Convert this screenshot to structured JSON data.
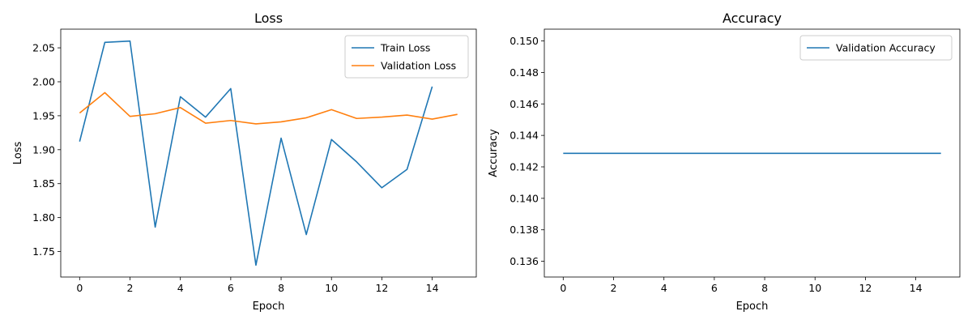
{
  "colors": {
    "series_1": "#1f77b4",
    "series_2": "#ff7f0e",
    "axis": "#000000",
    "background": "#ffffff"
  },
  "chart_data": [
    {
      "type": "line",
      "title": "Loss",
      "xlabel": "Epoch",
      "ylabel": "Loss",
      "xlim": [
        -0.75,
        15.75
      ],
      "ylim": [
        1.7125,
        2.0775
      ],
      "xticks": [
        0,
        2,
        4,
        6,
        8,
        10,
        12,
        14
      ],
      "yticks": [
        1.75,
        1.8,
        1.85,
        1.9,
        1.95,
        2.0,
        2.05
      ],
      "ytick_labels": [
        "1.75",
        "1.80",
        "1.85",
        "1.90",
        "1.95",
        "2.00",
        "2.05"
      ],
      "grid": false,
      "legend_position": "top-right",
      "series": [
        {
          "name": "Train Loss",
          "color": "#1f77b4",
          "x": [
            0,
            1,
            2,
            3,
            4,
            5,
            6,
            7,
            8,
            9,
            10,
            11,
            12,
            13,
            14
          ],
          "y": [
            1.912,
            2.058,
            2.06,
            1.786,
            1.978,
            1.948,
            1.99,
            1.73,
            1.917,
            1.775,
            1.915,
            1.882,
            1.844,
            1.871,
            1.993
          ]
        },
        {
          "name": "Validation Loss",
          "color": "#ff7f0e",
          "x": [
            0,
            1,
            2,
            3,
            4,
            5,
            6,
            7,
            8,
            9,
            10,
            11,
            12,
            13,
            14,
            15
          ],
          "y": [
            1.954,
            1.984,
            1.949,
            1.953,
            1.962,
            1.939,
            1.943,
            1.938,
            1.941,
            1.947,
            1.959,
            1.946,
            1.948,
            1.951,
            1.945,
            1.952
          ]
        }
      ]
    },
    {
      "type": "line",
      "title": "Accuracy",
      "xlabel": "Epoch",
      "ylabel": "Accuracy",
      "xlim": [
        -0.75,
        15.75
      ],
      "ylim": [
        0.135,
        0.15075
      ],
      "xticks": [
        0,
        2,
        4,
        6,
        8,
        10,
        12,
        14
      ],
      "yticks": [
        0.136,
        0.138,
        0.14,
        0.142,
        0.144,
        0.146,
        0.148,
        0.15
      ],
      "ytick_labels": [
        "0.136",
        "0.138",
        "0.140",
        "0.142",
        "0.144",
        "0.146",
        "0.148",
        "0.150"
      ],
      "grid": false,
      "legend_position": "top-right",
      "series": [
        {
          "name": "Validation Accuracy",
          "color": "#1f77b4",
          "x": [
            0,
            1,
            2,
            3,
            4,
            5,
            6,
            7,
            8,
            9,
            10,
            11,
            12,
            13,
            14,
            15
          ],
          "y": [
            0.142857,
            0.142857,
            0.142857,
            0.142857,
            0.142857,
            0.142857,
            0.142857,
            0.142857,
            0.142857,
            0.142857,
            0.142857,
            0.142857,
            0.142857,
            0.142857,
            0.142857,
            0.142857
          ]
        }
      ]
    }
  ]
}
